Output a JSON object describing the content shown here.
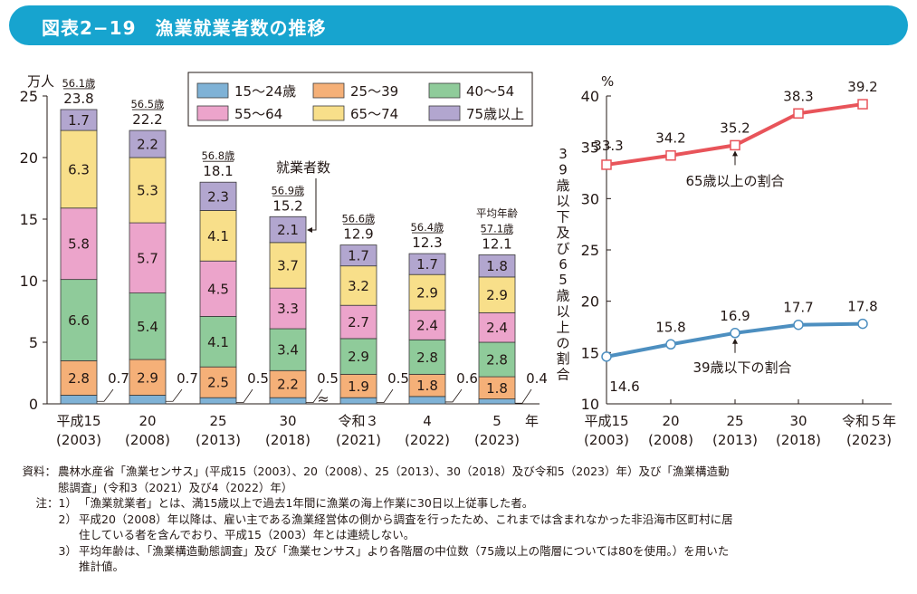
{
  "title": "図表2−19　漁業就業者数の推移",
  "colors": {
    "title_bar": "#17a4cf",
    "s15_24": "#7fb2d6",
    "s25_39": "#f5b078",
    "s40_54": "#8fcb9a",
    "s55_64": "#eca4cb",
    "s65_74": "#f8df8a",
    "s75": "#b2a6cf",
    "line_65": "#e8545a",
    "line_39": "#4d8fc0"
  },
  "chart_data": [
    {
      "type": "bar",
      "stacked": true,
      "ylabel": "万人",
      "ylim": [
        0,
        25
      ],
      "yticks": [
        0,
        5,
        10,
        15,
        20,
        25
      ],
      "x_unit": "年",
      "categories": [
        {
          "era": "平成15",
          "year": "(2003)"
        },
        {
          "era": "20",
          "year": "(2008)"
        },
        {
          "era": "25",
          "year": "(2013)"
        },
        {
          "era": "30",
          "year": "(2018)"
        },
        {
          "era": "令和３",
          "year": "(2021)"
        },
        {
          "era": "4",
          "year": "(2022)"
        },
        {
          "era": "5",
          "year": "(2023)"
        }
      ],
      "series": [
        {
          "name": "15〜24歳",
          "values": [
            0.7,
            0.7,
            0.5,
            0.5,
            0.5,
            0.6,
            0.4
          ]
        },
        {
          "name": "25〜39",
          "values": [
            2.8,
            2.9,
            2.5,
            2.2,
            1.9,
            1.8,
            1.8
          ]
        },
        {
          "name": "40〜54",
          "values": [
            6.6,
            5.4,
            4.1,
            3.4,
            2.9,
            2.8,
            2.8
          ]
        },
        {
          "name": "55〜64",
          "values": [
            5.8,
            5.7,
            4.5,
            3.3,
            2.7,
            2.4,
            2.4
          ]
        },
        {
          "name": "65〜74",
          "values": [
            6.3,
            5.3,
            4.1,
            3.7,
            3.2,
            2.9,
            2.9
          ]
        },
        {
          "name": "75歳以上",
          "values": [
            1.7,
            2.2,
            2.3,
            2.1,
            1.7,
            1.7,
            1.8
          ]
        }
      ],
      "totals": [
        "23.8",
        "22.2",
        "18.1",
        "15.2",
        "12.9",
        "12.3",
        "12.1"
      ],
      "avg_age": [
        "56.1歳",
        "56.5歳",
        "56.8歳",
        "56.9歳",
        "56.6歳",
        "56.4歳",
        "57.1歳"
      ],
      "avg_age_label": "平均年齢",
      "annotation": "就業者数",
      "axis_break": "≈",
      "legend_placement": "top"
    },
    {
      "type": "line",
      "ylabel": "%",
      "ylim": [
        10,
        40
      ],
      "yticks": [
        10,
        15,
        20,
        25,
        30,
        35,
        40
      ],
      "side_label": "39歳以下及び65歳以上の割合",
      "categories": [
        {
          "era": "平成15",
          "year": "(2003)"
        },
        {
          "era": "20",
          "year": "(2008)"
        },
        {
          "era": "25",
          "year": "(2013)"
        },
        {
          "era": "30",
          "year": "(2018)"
        },
        {
          "era": "令和５年",
          "year": "(2023)"
        }
      ],
      "series": [
        {
          "name": "65歳以上の割合",
          "values": [
            33.3,
            34.2,
            35.2,
            38.3,
            39.2
          ],
          "labels": [
            "33.3",
            "34.2",
            "35.2",
            "38.3",
            "39.2"
          ]
        },
        {
          "name": "39歳以下の割合",
          "values": [
            14.6,
            15.8,
            16.9,
            17.7,
            17.8
          ],
          "labels": [
            "14.6",
            "15.8",
            "16.9",
            "17.7",
            "17.8"
          ]
        }
      ]
    }
  ],
  "notes": [
    {
      "label": "資料：",
      "text": "農林水産省「漁業センサス」(平成15（2003）、20（2008）、25（2013）、30（2018）及び令和5（2023）年）及び「漁業構造動"
    },
    {
      "label": "",
      "text": "態調査」(令和3（2021）及び4（2022）年）"
    },
    {
      "label": "注：1）",
      "text": "「漁業就業者」とは、満15歳以上で過去1年間に漁業の海上作業に30日以上従事した者。"
    },
    {
      "label": "2）",
      "text": "平成20（2008）年以降は、雇い主である漁業経営体の側から調査を行ったため、これまでは含まれなかった非沿海市区町村に居"
    },
    {
      "label": "",
      "text": "住している者を含んでおり、平成15（2003）年とは連続しない。"
    },
    {
      "label": "3）",
      "text": "平均年齢は、「漁業構造動態調査」及び「漁業センサス」より各階層の中位数（75歳以上の階層については80を使用。）を用いた"
    },
    {
      "label": "",
      "text": "推計値。"
    }
  ]
}
